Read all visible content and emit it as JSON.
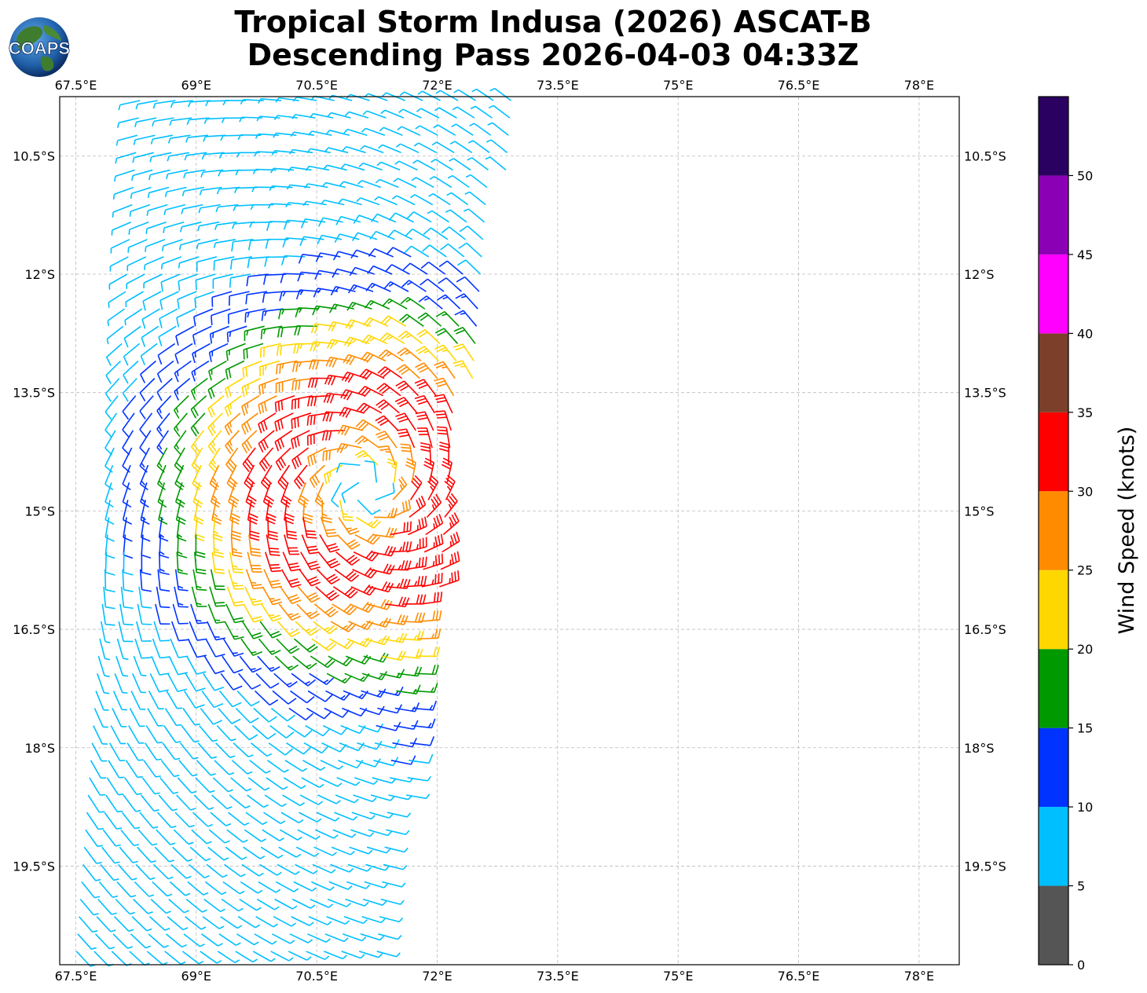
{
  "header": {
    "title_line1": "Tropical Storm Indusa (2026) ASCAT-B",
    "title_line2": "Descending Pass 2026-04-03 04:33Z",
    "logo_text": "COAPS"
  },
  "chart_data": {
    "type": "wind-barb map",
    "projection": "PlateCarree",
    "lon_range": [
      67.3,
      78.5
    ],
    "lat_range": [
      -20.75,
      -9.75
    ],
    "grid": true,
    "lon_ticks": [
      67.5,
      69,
      70.5,
      72,
      73.5,
      75,
      76.5,
      78
    ],
    "lon_tick_labels": [
      "67.5°E",
      "69°E",
      "70.5°E",
      "72°E",
      "73.5°E",
      "75°E",
      "76.5°E",
      "78°E"
    ],
    "lat_ticks": [
      -10.5,
      -12,
      -13.5,
      -15,
      -16.5,
      -18,
      -19.5
    ],
    "lat_tick_labels": [
      "10.5°S",
      "12°S",
      "13.5°S",
      "15°S",
      "16.5°S",
      "18°S",
      "19.5°S"
    ],
    "storm_center_approx": {
      "lon": 71.1,
      "lat": -14.7
    },
    "swath": {
      "lat_start": -9.8,
      "lat_end": -20.7,
      "west_edge_lon_start": 68.3,
      "west_edge_lon_end": 67.5,
      "east_edge_lon_start": 73.0,
      "east_edge_lon_end": 71.3
    },
    "wind_speed_observed_max_kt": 33,
    "colorbar": {
      "label": "Wind Speed (knots)",
      "ticks": [
        0,
        5,
        10,
        15,
        20,
        25,
        30,
        35,
        40,
        45,
        50
      ],
      "bins": [
        {
          "min": 0,
          "max": 5,
          "color": "#555555"
        },
        {
          "min": 5,
          "max": 10,
          "color": "#00bfff"
        },
        {
          "min": 10,
          "max": 15,
          "color": "#0033ff"
        },
        {
          "min": 15,
          "max": 20,
          "color": "#009900"
        },
        {
          "min": 20,
          "max": 25,
          "color": "#ffd700"
        },
        {
          "min": 25,
          "max": 30,
          "color": "#ff8c00"
        },
        {
          "min": 30,
          "max": 35,
          "color": "#ff0000"
        },
        {
          "min": 35,
          "max": 40,
          "color": "#7b3f2a"
        },
        {
          "min": 40,
          "max": 45,
          "color": "#ff00ff"
        },
        {
          "min": 45,
          "max": 50,
          "color": "#8b00b4"
        },
        {
          "min": 50,
          "max": 55,
          "color": "#2a0060"
        }
      ]
    }
  }
}
